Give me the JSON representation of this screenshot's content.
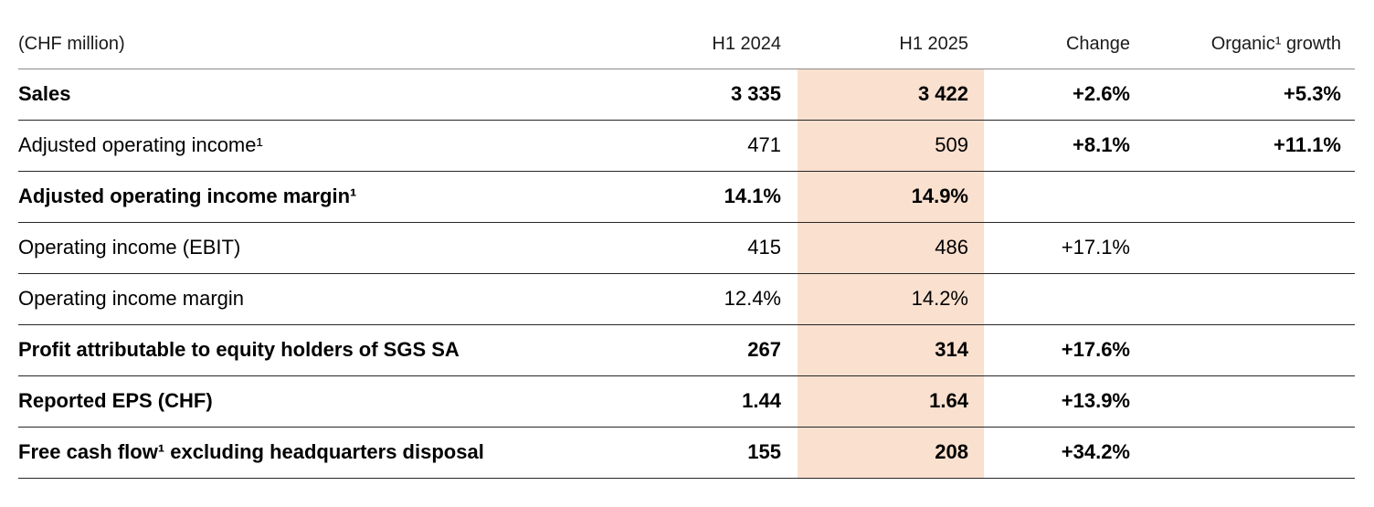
{
  "page": {
    "background": "#ffffff"
  },
  "table": {
    "unit_label": "(CHF million)",
    "highlight_color": "#fae0cf",
    "rule_color_header": "#8a8a8a",
    "rule_color_rows": "#262626",
    "header": {
      "h1_2024": "H1 2024",
      "h1_2025": "H1 2025",
      "change": "Change",
      "organic": "Organic¹ growth"
    },
    "rows": [
      {
        "label": "Sales",
        "h1_2024": "3 335",
        "h1_2025": "3 422",
        "change": "+2.6%",
        "organic": "+5.3%"
      },
      {
        "label": "Adjusted operating income¹",
        "h1_2024": "471",
        "h1_2025": "509",
        "change": "+8.1%",
        "organic": "+11.1%"
      },
      {
        "label": "Adjusted operating income margin¹",
        "h1_2024": "14.1%",
        "h1_2025": "14.9%",
        "change": "",
        "organic": ""
      },
      {
        "label": "Operating income (EBIT)",
        "h1_2024": "415",
        "h1_2025": "486",
        "change": "+17.1%",
        "organic": ""
      },
      {
        "label": "Operating income margin",
        "h1_2024": "12.4%",
        "h1_2025": "14.2%",
        "change": "",
        "organic": ""
      },
      {
        "label": "Profit attributable to equity holders of SGS SA",
        "h1_2024": "267",
        "h1_2025": "314",
        "change": "+17.6%",
        "organic": ""
      },
      {
        "label": "Reported EPS (CHF)",
        "h1_2024": "1.44",
        "h1_2025": "1.64",
        "change": "+13.9%",
        "organic": ""
      },
      {
        "label": "Free cash flow¹ excluding headquarters disposal",
        "h1_2024": "155",
        "h1_2025": "208",
        "change": "+34.2%",
        "organic": ""
      }
    ]
  }
}
